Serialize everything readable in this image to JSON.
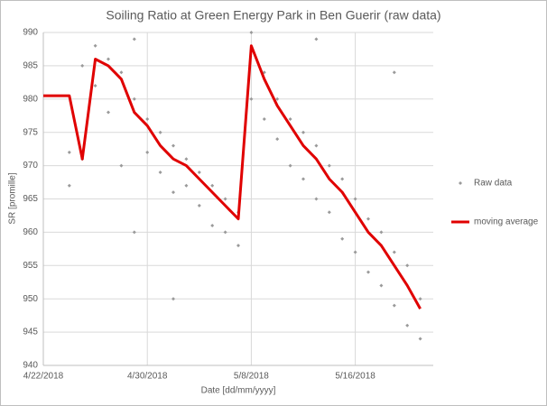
{
  "chart_data": {
    "type": "scatter",
    "title": "Soiling Ratio at Green Energy Park in Ben Guerir (raw data)",
    "x_label": "Date [dd/mm/yyyy]",
    "y_label": "SR [promille]",
    "xlim": [
      "4/22/2018",
      "5/22/2018"
    ],
    "xticks": [
      "4/22/2018",
      "4/30/2018",
      "5/8/2018",
      "5/16/2018"
    ],
    "ylim": [
      940,
      990
    ],
    "yticks": [
      940,
      945,
      950,
      955,
      960,
      965,
      970,
      975,
      980,
      985,
      990
    ],
    "grid": true,
    "legend": "right",
    "series": [
      {
        "name": "Raw data",
        "color": "#9a9a9a",
        "mode": "markers",
        "x": [
          "4/24/2018",
          "4/24/2018",
          "4/25/2018",
          "4/25/2018",
          "4/26/2018",
          "4/26/2018",
          "4/27/2018",
          "4/27/2018",
          "4/28/2018",
          "4/28/2018",
          "4/29/2018",
          "4/29/2018",
          "4/29/2018",
          "4/30/2018",
          "4/30/2018",
          "5/1/2018",
          "5/1/2018",
          "5/2/2018",
          "5/2/2018",
          "5/2/2018",
          "5/3/2018",
          "5/3/2018",
          "5/4/2018",
          "5/4/2018",
          "5/5/2018",
          "5/5/2018",
          "5/6/2018",
          "5/6/2018",
          "5/7/2018",
          "5/7/2018",
          "5/8/2018",
          "5/8/2018",
          "5/9/2018",
          "5/9/2018",
          "5/10/2018",
          "5/10/2018",
          "5/11/2018",
          "5/11/2018",
          "5/12/2018",
          "5/12/2018",
          "5/13/2018",
          "5/13/2018",
          "5/13/2018",
          "5/14/2018",
          "5/14/2018",
          "5/15/2018",
          "5/15/2018",
          "5/16/2018",
          "5/16/2018",
          "5/17/2018",
          "5/17/2018",
          "5/18/2018",
          "5/18/2018",
          "5/19/2018",
          "5/19/2018",
          "5/19/2018",
          "5/20/2018",
          "5/20/2018",
          "5/21/2018",
          "5/21/2018"
        ],
        "values": [
          972,
          967,
          985,
          971,
          988,
          982,
          986,
          978,
          984,
          970,
          980,
          960,
          989,
          977,
          972,
          975,
          969,
          973,
          966,
          950,
          971,
          967,
          969,
          964,
          967,
          961,
          965,
          960,
          963,
          958,
          990,
          980,
          984,
          977,
          980,
          974,
          977,
          970,
          975,
          968,
          973,
          965,
          989,
          970,
          963,
          968,
          959,
          965,
          957,
          962,
          954,
          960,
          952,
          957,
          949,
          984,
          955,
          946,
          950,
          944
        ]
      },
      {
        "name": "moving average",
        "color": "#e00000",
        "mode": "line",
        "x": [
          "4/22/2018",
          "4/23/2018",
          "4/24/2018",
          "4/25/2018",
          "4/26/2018",
          "4/27/2018",
          "4/28/2018",
          "4/29/2018",
          "4/30/2018",
          "5/1/2018",
          "5/2/2018",
          "5/3/2018",
          "5/4/2018",
          "5/5/2018",
          "5/6/2018",
          "5/7/2018",
          "5/8/2018",
          "5/9/2018",
          "5/10/2018",
          "5/11/2018",
          "5/12/2018",
          "5/13/2018",
          "5/14/2018",
          "5/15/2018",
          "5/16/2018",
          "5/17/2018",
          "5/18/2018",
          "5/19/2018",
          "5/20/2018",
          "5/21/2018"
        ],
        "values": [
          980.5,
          980.5,
          980.5,
          971,
          986,
          985,
          983,
          978,
          976,
          973,
          971,
          970,
          968,
          966,
          964,
          962,
          988,
          983,
          979,
          976,
          973,
          971,
          968,
          966,
          963,
          960,
          958,
          955,
          952,
          948.5
        ]
      }
    ]
  }
}
